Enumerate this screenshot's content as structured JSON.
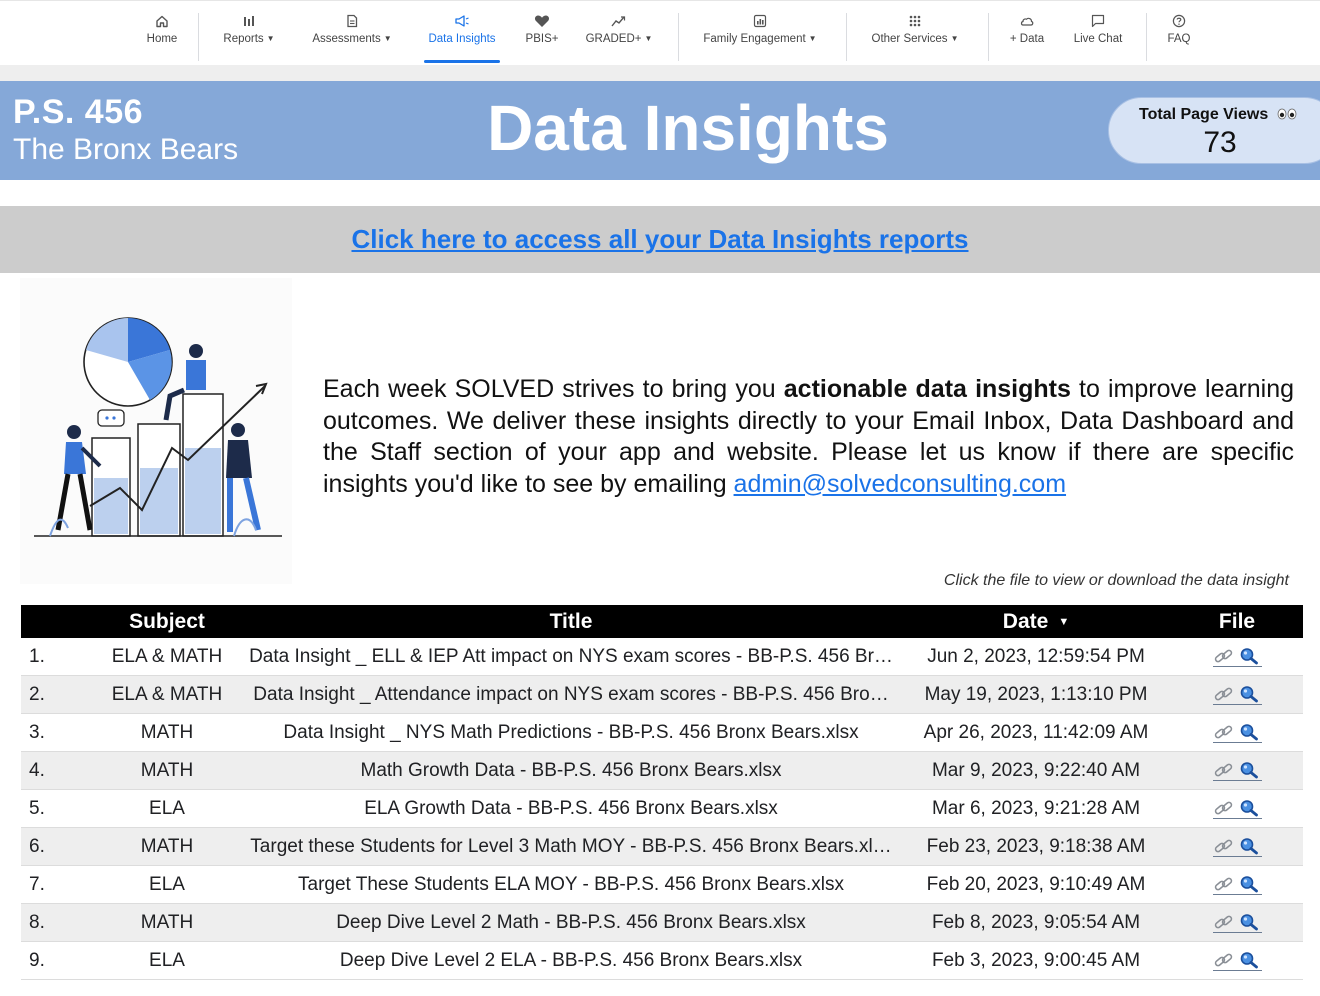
{
  "nav": {
    "items": [
      {
        "label": "Home",
        "icon": "home-icon",
        "caret": false
      },
      {
        "label": "Reports",
        "icon": "bar-chart-icon",
        "caret": true
      },
      {
        "label": "Assessments",
        "icon": "document-icon",
        "caret": true
      },
      {
        "label": "Data Insights",
        "icon": "megaphone-icon",
        "caret": false,
        "active": true
      },
      {
        "label": "PBIS+",
        "icon": "heart-icon",
        "caret": false
      },
      {
        "label": "GRADED+",
        "icon": "trend-icon",
        "caret": true
      },
      {
        "label": "Family Engagement",
        "icon": "analytics-icon",
        "caret": true
      },
      {
        "label": "Other Services",
        "icon": "grid-icon",
        "caret": true
      },
      {
        "label": "+ Data",
        "icon": "cloud-icon",
        "caret": false
      },
      {
        "label": "Live Chat",
        "icon": "chat-icon",
        "caret": false
      },
      {
        "label": "FAQ",
        "icon": "help-icon",
        "caret": false
      }
    ],
    "accent": "#1a73e8"
  },
  "banner": {
    "school_name": "P.S. 456",
    "school_nickname": "The Bronx Bears",
    "title": "Data Insights",
    "views_label": "Total Page Views",
    "views_count": "73",
    "background": "#85a8d8"
  },
  "reports_link": "Click here to access all your Data Insights reports",
  "description": {
    "before": "Each week SOLVED strives to bring you ",
    "bold": "actionable data insights",
    "after": " to improve learning outcomes. We deliver these insights directly to your Email Inbox, Data Dashboard and the Staff section of your app and website. Please let us know if there are specific insights you'd like to see by emailing ",
    "email": "admin@solvedconsulting.com"
  },
  "hint": "Click the file to view or download the data insight",
  "table": {
    "headers": {
      "subject": "Subject",
      "title": "Title",
      "date": "Date",
      "file": "File"
    },
    "sort_indicator": "▼",
    "rows": [
      {
        "idx": "1.",
        "subject": "ELA & MATH",
        "title": "Data Insight _ ELL & IEP Att impact on NYS exam scores - BB-P.S. 456 Br…",
        "date": "Jun 2, 2023, 12:59:54 PM"
      },
      {
        "idx": "2.",
        "subject": "ELA & MATH",
        "title": "Data Insight _ Attendance impact on NYS exam scores - BB-P.S. 456 Bro…",
        "date": "May 19, 2023, 1:13:10 PM"
      },
      {
        "idx": "3.",
        "subject": "MATH",
        "title": "Data Insight _ NYS Math Predictions - BB-P.S. 456 Bronx Bears.xlsx",
        "date": "Apr 26, 2023, 11:42:09 AM"
      },
      {
        "idx": "4.",
        "subject": "MATH",
        "title": "Math Growth Data - BB-P.S. 456 Bronx Bears.xlsx",
        "date": "Mar 9, 2023, 9:22:40 AM"
      },
      {
        "idx": "5.",
        "subject": "ELA",
        "title": "ELA Growth Data - BB-P.S. 456 Bronx Bears.xlsx",
        "date": "Mar 6, 2023, 9:21:28 AM"
      },
      {
        "idx": "6.",
        "subject": "MATH",
        "title": "Target these Students for Level 3 Math MOY - BB-P.S. 456 Bronx Bears.xl…",
        "date": "Feb 23, 2023, 9:18:38 AM"
      },
      {
        "idx": "7.",
        "subject": "ELA",
        "title": "Target These Students ELA MOY - BB-P.S. 456 Bronx Bears.xlsx",
        "date": "Feb 20, 2023, 9:10:49 AM"
      },
      {
        "idx": "8.",
        "subject": "MATH",
        "title": "Deep Dive Level 2 Math - BB-P.S. 456 Bronx Bears.xlsx",
        "date": "Feb 8, 2023, 9:05:54 AM"
      },
      {
        "idx": "9.",
        "subject": "ELA",
        "title": "Deep Dive Level 2 ELA - BB-P.S. 456 Bronx Bears.xlsx",
        "date": "Feb 3, 2023, 9:00:45 AM"
      }
    ]
  }
}
